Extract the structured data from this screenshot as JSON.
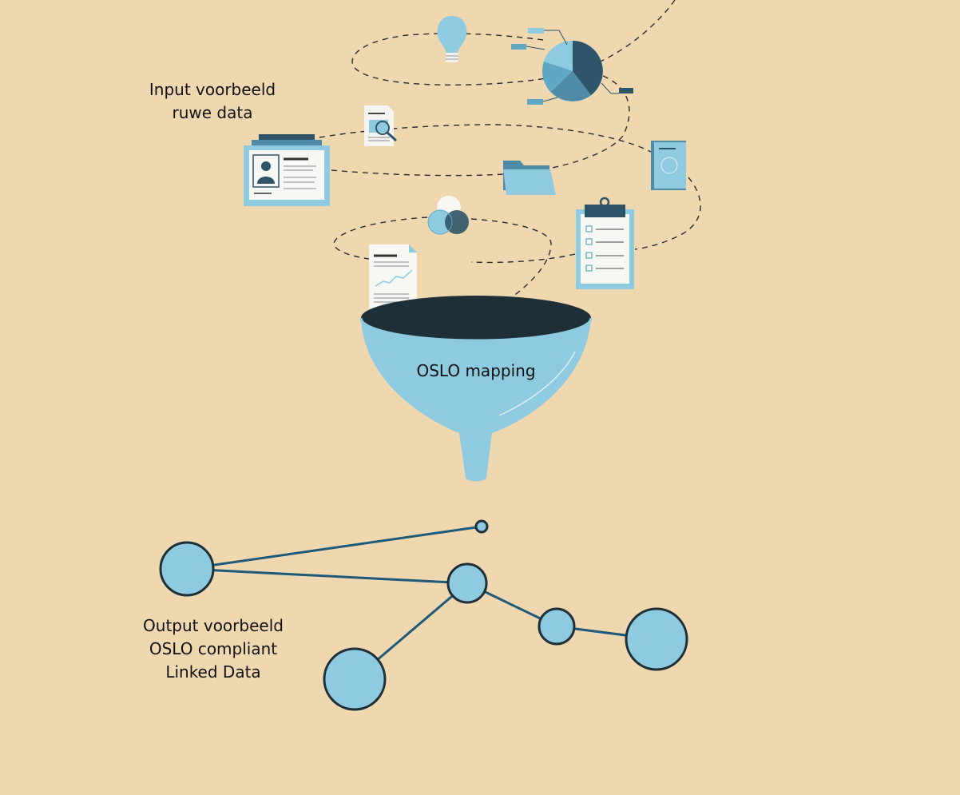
{
  "input_label": {
    "line1": "Input voorbeeld",
    "line2": "ruwe data"
  },
  "funnel_label": "OSLO mapping",
  "output_label": {
    "line1": "Output voorbeeld",
    "line2": "OSLO compliant",
    "line3": "Linked Data"
  },
  "colors": {
    "background": "#efd8b0",
    "light_blue": "#8ecae0",
    "mid_blue": "#5fa8c4",
    "dark_blue": "#2e5468",
    "funnel_dark": "#1f2f38",
    "line": "#1e5a78",
    "paper": "#f7f7f3"
  },
  "icons": [
    "lightbulb-icon",
    "pie-chart-icon",
    "document-search-icon",
    "id-card-icon",
    "folder-icon",
    "book-icon",
    "venn-diagram-icon",
    "clipboard-checklist-icon",
    "report-document-icon",
    "funnel-icon"
  ],
  "graph": {
    "nodes": [
      "n1",
      "n2",
      "n3",
      "n4",
      "n5",
      "n6",
      "n7"
    ],
    "edges": [
      [
        "n1",
        "n2"
      ],
      [
        "n1",
        "n3"
      ],
      [
        "n3",
        "n4"
      ],
      [
        "n3",
        "n5"
      ],
      [
        "n5",
        "n6"
      ]
    ]
  }
}
